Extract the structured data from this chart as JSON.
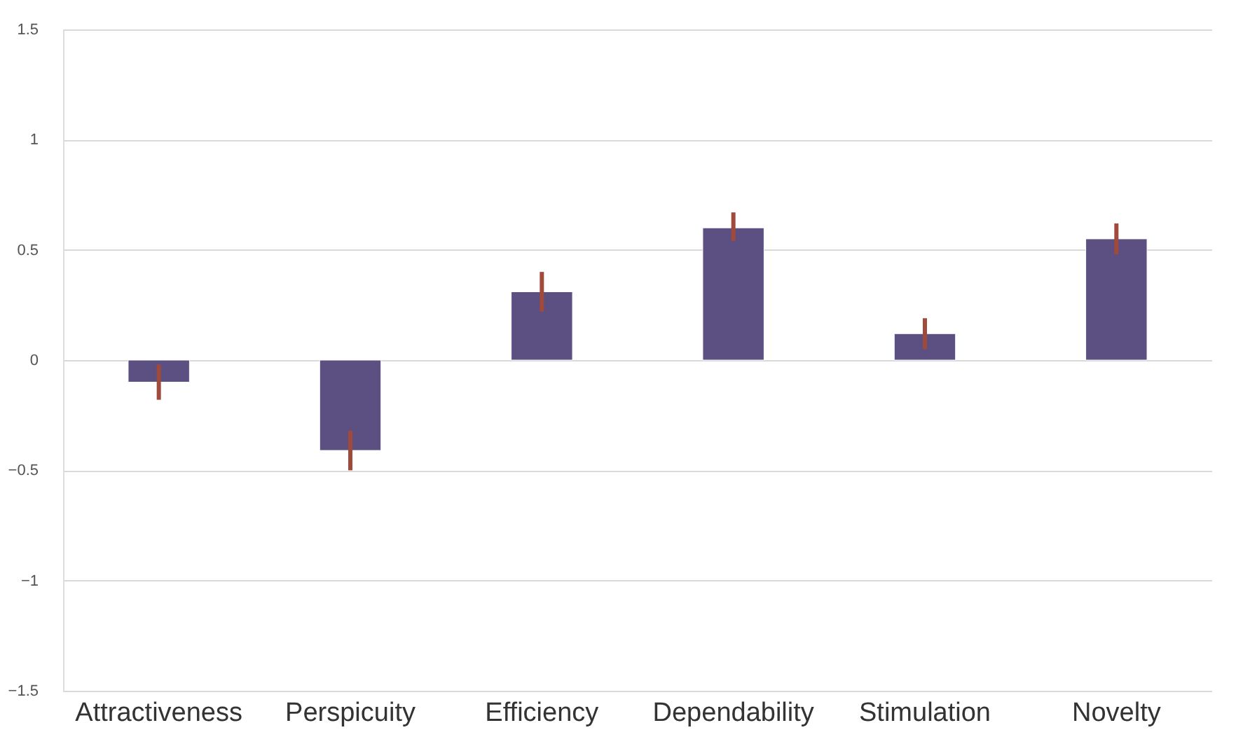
{
  "chart_data": {
    "type": "bar",
    "categories": [
      "Attractiveness",
      "Perspicuity",
      "Efficiency",
      "Dependability",
      "Stimulation",
      "Novelty"
    ],
    "values": [
      -0.1,
      -0.41,
      0.31,
      0.6,
      0.12,
      0.55
    ],
    "errors": [
      [
        -0.18,
        -0.02
      ],
      [
        -0.5,
        -0.32
      ],
      [
        0.22,
        0.4
      ],
      [
        0.54,
        0.67
      ],
      [
        0.05,
        0.19
      ],
      [
        0.48,
        0.62
      ]
    ],
    "color": "#5c4f82",
    "ylim": [
      -1.5,
      1.5
    ],
    "yticks": [
      -1.5,
      -1,
      -0.5,
      0,
      0.5,
      1,
      1.5
    ],
    "grid": "y"
  }
}
